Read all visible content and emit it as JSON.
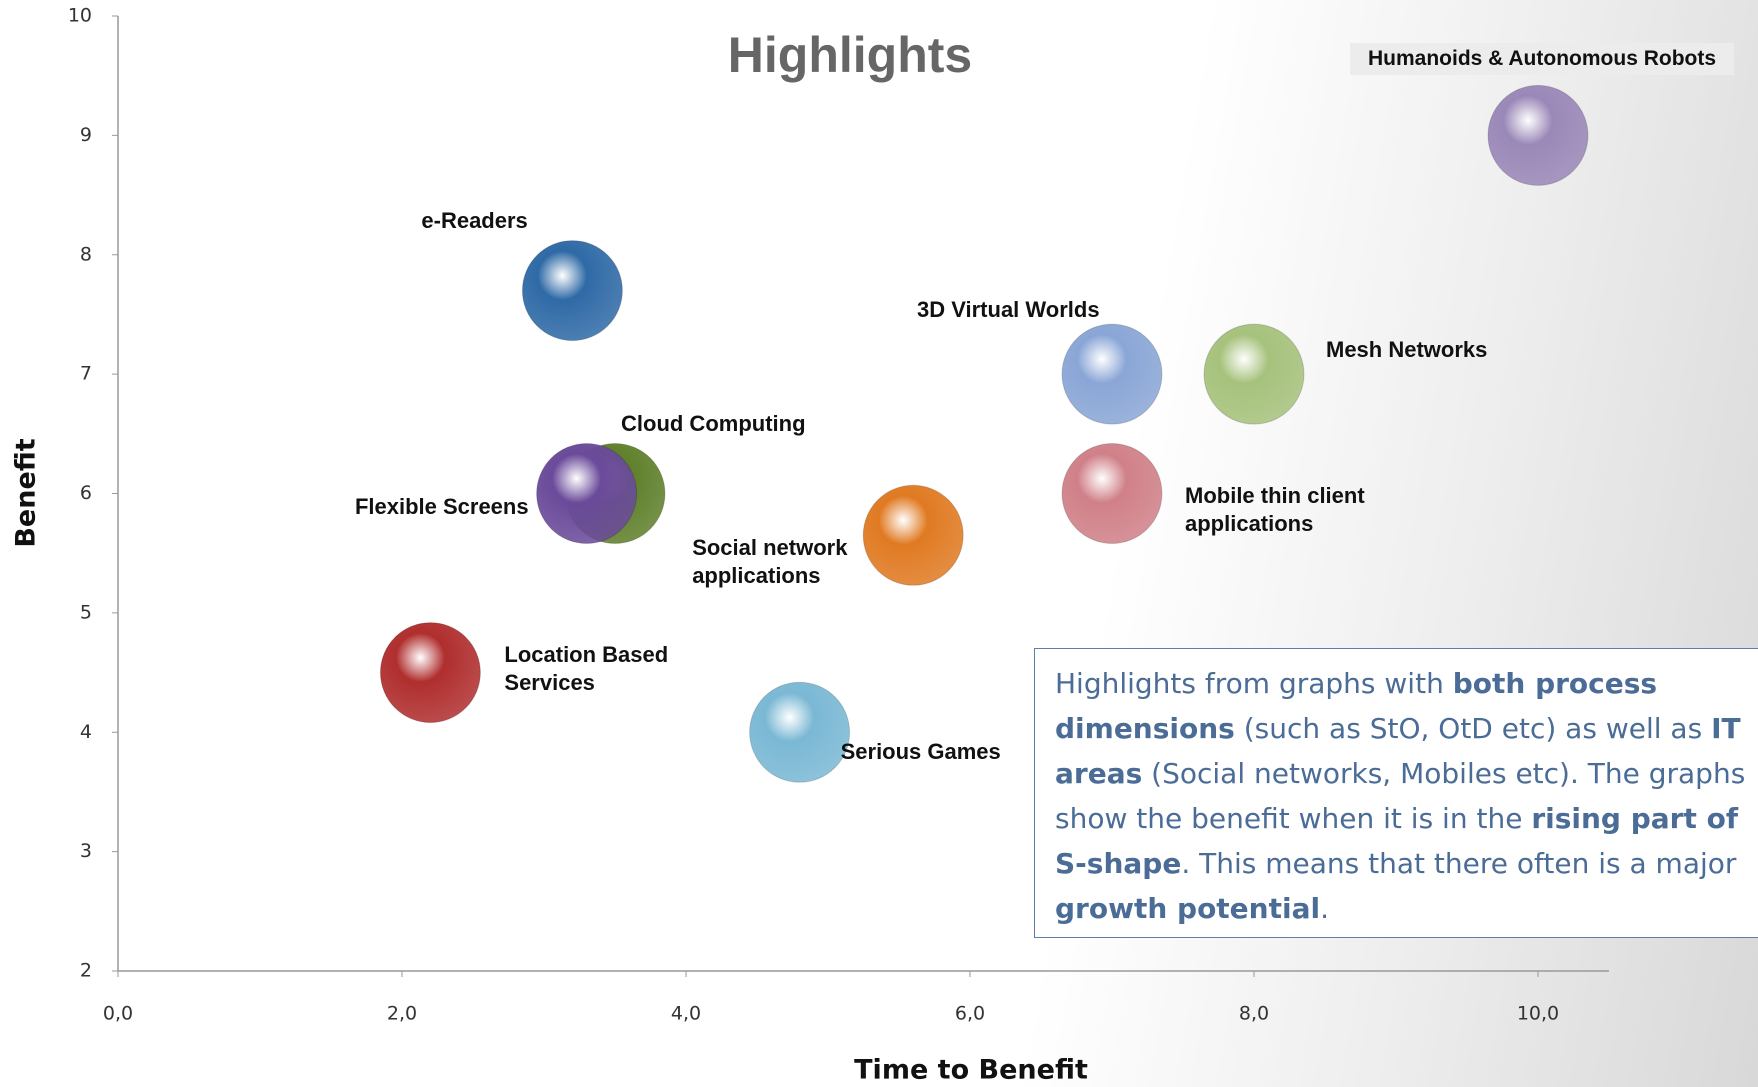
{
  "chart_data": {
    "type": "bubble",
    "title": "Highlights",
    "x_label": "Time to Benefit",
    "y_label": "Benefit",
    "xlim": [
      0,
      10.5
    ],
    "ylim": [
      2,
      10
    ],
    "xticks": [
      {
        "value": 0,
        "label": "0,0"
      },
      {
        "value": 2,
        "label": "2,0"
      },
      {
        "value": 4,
        "label": "4,0"
      },
      {
        "value": 6,
        "label": "6,0"
      },
      {
        "value": 8,
        "label": "8,0"
      },
      {
        "value": 10,
        "label": "10,0"
      }
    ],
    "yticks": [
      2,
      3,
      4,
      5,
      6,
      7,
      8,
      9,
      10
    ],
    "series": [
      {
        "name": "e-Readers",
        "color": "#2f6aa6",
        "x": [
          3.2
        ],
        "values": [
          7.7
        ]
      },
      {
        "name": "Humanoids & Autonomous Robots",
        "color": "#9a88b8",
        "x": [
          10.0
        ],
        "values": [
          9.0
        ]
      },
      {
        "name": "3D Virtual Worlds",
        "color": "#8aa6d6",
        "x": [
          7.0
        ],
        "values": [
          7.0
        ]
      },
      {
        "name": "Mesh Networks",
        "color": "#a6c27c",
        "x": [
          8.0
        ],
        "values": [
          7.0
        ]
      },
      {
        "name": "Cloud Computing",
        "color": "#5e7f2a",
        "x": [
          3.5
        ],
        "values": [
          6.0
        ]
      },
      {
        "name": "Flexible Screens",
        "color": "#6a4a9a",
        "x": [
          3.3
        ],
        "values": [
          6.0
        ]
      },
      {
        "name": "Mobile thin client applications",
        "color": "#d08088",
        "x": [
          7.0
        ],
        "values": [
          6.0
        ]
      },
      {
        "name": "Social network applications",
        "color": "#e07a22",
        "x": [
          5.6
        ],
        "values": [
          5.65
        ]
      },
      {
        "name": "Location Based Services",
        "color": "#b02e2e",
        "x": [
          2.2
        ],
        "values": [
          4.5
        ]
      },
      {
        "name": "Serious Games",
        "color": "#7ab8d4",
        "x": [
          4.8
        ],
        "values": [
          4.0
        ]
      }
    ],
    "note": [
      "Highlights from graphs with ",
      "both process dimensions",
      " (such as StO, OtD etc) as well as ",
      "IT areas",
      " (Social networks, Mobiles etc). The graphs show the benefit when it is in the ",
      "rising  part of S-shape",
      ". This means that there often is a major ",
      "growth potential",
      "."
    ]
  }
}
